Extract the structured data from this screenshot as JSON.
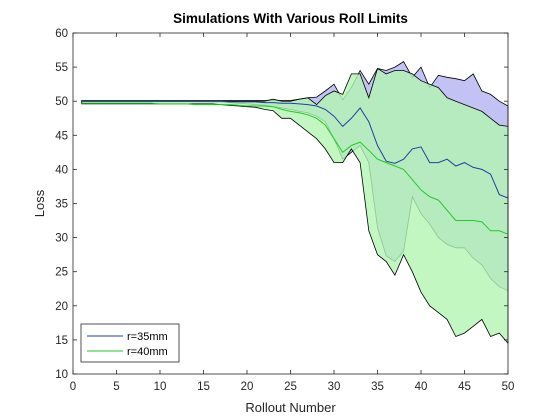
{
  "chart_data": {
    "type": "line",
    "title": "Simulations With Various Roll Limits",
    "xlabel": "Rollout Number",
    "ylabel": "Loss",
    "xlim": [
      0,
      50
    ],
    "ylim": [
      10,
      60
    ],
    "xticks": [
      0,
      5,
      10,
      15,
      20,
      25,
      30,
      35,
      40,
      45,
      50
    ],
    "yticks": [
      10,
      15,
      20,
      25,
      30,
      35,
      40,
      45,
      50,
      55,
      60
    ],
    "grid": false,
    "legend_position": "bottom-left",
    "series": [
      {
        "name": "r=35mm",
        "color": "#2040a0",
        "band_color": "#b3b3f2",
        "x": [
          1,
          2,
          3,
          4,
          5,
          6,
          7,
          8,
          9,
          10,
          11,
          12,
          13,
          14,
          15,
          16,
          17,
          18,
          19,
          20,
          21,
          22,
          23,
          24,
          25,
          26,
          27,
          28,
          29,
          30,
          31,
          32,
          33,
          34,
          35,
          36,
          37,
          38,
          39,
          40,
          41,
          42,
          43,
          44,
          45,
          46,
          47,
          48,
          49,
          50
        ],
        "mean": [
          50,
          50,
          50,
          50,
          50,
          50,
          50,
          50,
          50,
          50,
          50,
          50,
          50,
          50,
          50,
          50,
          50,
          49.9,
          49.9,
          49.9,
          49.9,
          49.8,
          49.8,
          49.7,
          49.7,
          49.6,
          49.5,
          49.3,
          48.8,
          47.8,
          46.3,
          47.5,
          49,
          47,
          43.5,
          41.2,
          40.9,
          41.5,
          43,
          43.3,
          41,
          41,
          41.5,
          40.5,
          41,
          40.3,
          40,
          39.3,
          36.3,
          35.8
        ],
        "upper": [
          50.1,
          50.1,
          50.1,
          50.1,
          50.1,
          50.1,
          50.1,
          50.1,
          50.1,
          50.1,
          50.1,
          50.1,
          50.1,
          50.1,
          50.1,
          50.1,
          50.1,
          50.1,
          50.1,
          50.1,
          50.1,
          50.1,
          50.1,
          50.1,
          50.1,
          50.3,
          50.5,
          50.6,
          51.5,
          52.5,
          50.2,
          52,
          54.5,
          52.5,
          54.8,
          54.5,
          55,
          55.8,
          53.5,
          55,
          52,
          53.8,
          53.5,
          53.3,
          53,
          54,
          51.5,
          51,
          50,
          49.3
        ],
        "lower": [
          49.9,
          49.9,
          49.9,
          49.9,
          49.9,
          49.9,
          49.9,
          49.9,
          49.9,
          49.9,
          49.9,
          49.9,
          49.9,
          49.9,
          49.9,
          49.9,
          49.9,
          49.8,
          49.7,
          49.6,
          49.5,
          49.4,
          49.2,
          49,
          48.8,
          48.5,
          48.3,
          47.8,
          47,
          44.5,
          41.5,
          42.5,
          43.5,
          41,
          31.5,
          27.3,
          26.5,
          28,
          36,
          33.5,
          32,
          30,
          29,
          28.5,
          28.5,
          27,
          26,
          24,
          22.8,
          22.2
        ]
      },
      {
        "name": "r=40mm",
        "color": "#22cc22",
        "band_color": "#b3f5b3",
        "x": [
          1,
          2,
          3,
          4,
          5,
          6,
          7,
          8,
          9,
          10,
          11,
          12,
          13,
          14,
          15,
          16,
          17,
          18,
          19,
          20,
          21,
          22,
          23,
          24,
          25,
          26,
          27,
          28,
          29,
          30,
          31,
          32,
          33,
          34,
          35,
          36,
          37,
          38,
          39,
          40,
          41,
          42,
          43,
          44,
          45,
          46,
          47,
          48,
          49,
          50
        ],
        "mean": [
          49.7,
          49.7,
          49.7,
          49.7,
          49.7,
          49.7,
          49.7,
          49.7,
          49.7,
          49.6,
          49.6,
          49.6,
          49.6,
          49.5,
          49.5,
          49.5,
          49.5,
          49.5,
          49.4,
          49.3,
          49.3,
          49.3,
          49.2,
          48.8,
          48.5,
          48.3,
          48,
          47.5,
          46.5,
          44.5,
          42.5,
          43.5,
          44,
          42.8,
          41.5,
          41,
          40.5,
          40,
          38.5,
          37,
          36,
          35.5,
          34,
          32.5,
          32.5,
          32.5,
          32.3,
          31,
          31,
          30.5
        ],
        "upper": [
          50,
          50,
          50,
          50,
          50,
          50,
          50,
          50,
          50,
          50,
          50,
          50,
          50,
          50,
          50,
          50,
          50,
          50,
          50,
          50,
          50,
          50,
          50.3,
          50,
          50,
          50.3,
          50.5,
          49.5,
          50.8,
          51.5,
          51,
          54,
          54,
          50.5,
          54.8,
          54,
          54.5,
          54.5,
          54,
          53,
          52.5,
          52,
          50.5,
          50,
          49.5,
          49,
          48.5,
          47.5,
          46.5,
          46.3
        ],
        "lower": [
          49.6,
          49.6,
          49.6,
          49.6,
          49.6,
          49.6,
          49.6,
          49.6,
          49.6,
          49.6,
          49.6,
          49.6,
          49.6,
          49.6,
          49.6,
          49.6,
          49.5,
          49.4,
          49.3,
          49.2,
          49.1,
          48.8,
          48.6,
          47.5,
          47.5,
          46.5,
          45.5,
          44.5,
          43,
          41,
          41,
          43,
          41,
          31,
          27.5,
          26.5,
          24.5,
          27.5,
          25,
          22,
          20,
          19,
          18,
          15.5,
          16,
          17,
          18,
          15.5,
          16,
          14.5
        ]
      }
    ]
  }
}
